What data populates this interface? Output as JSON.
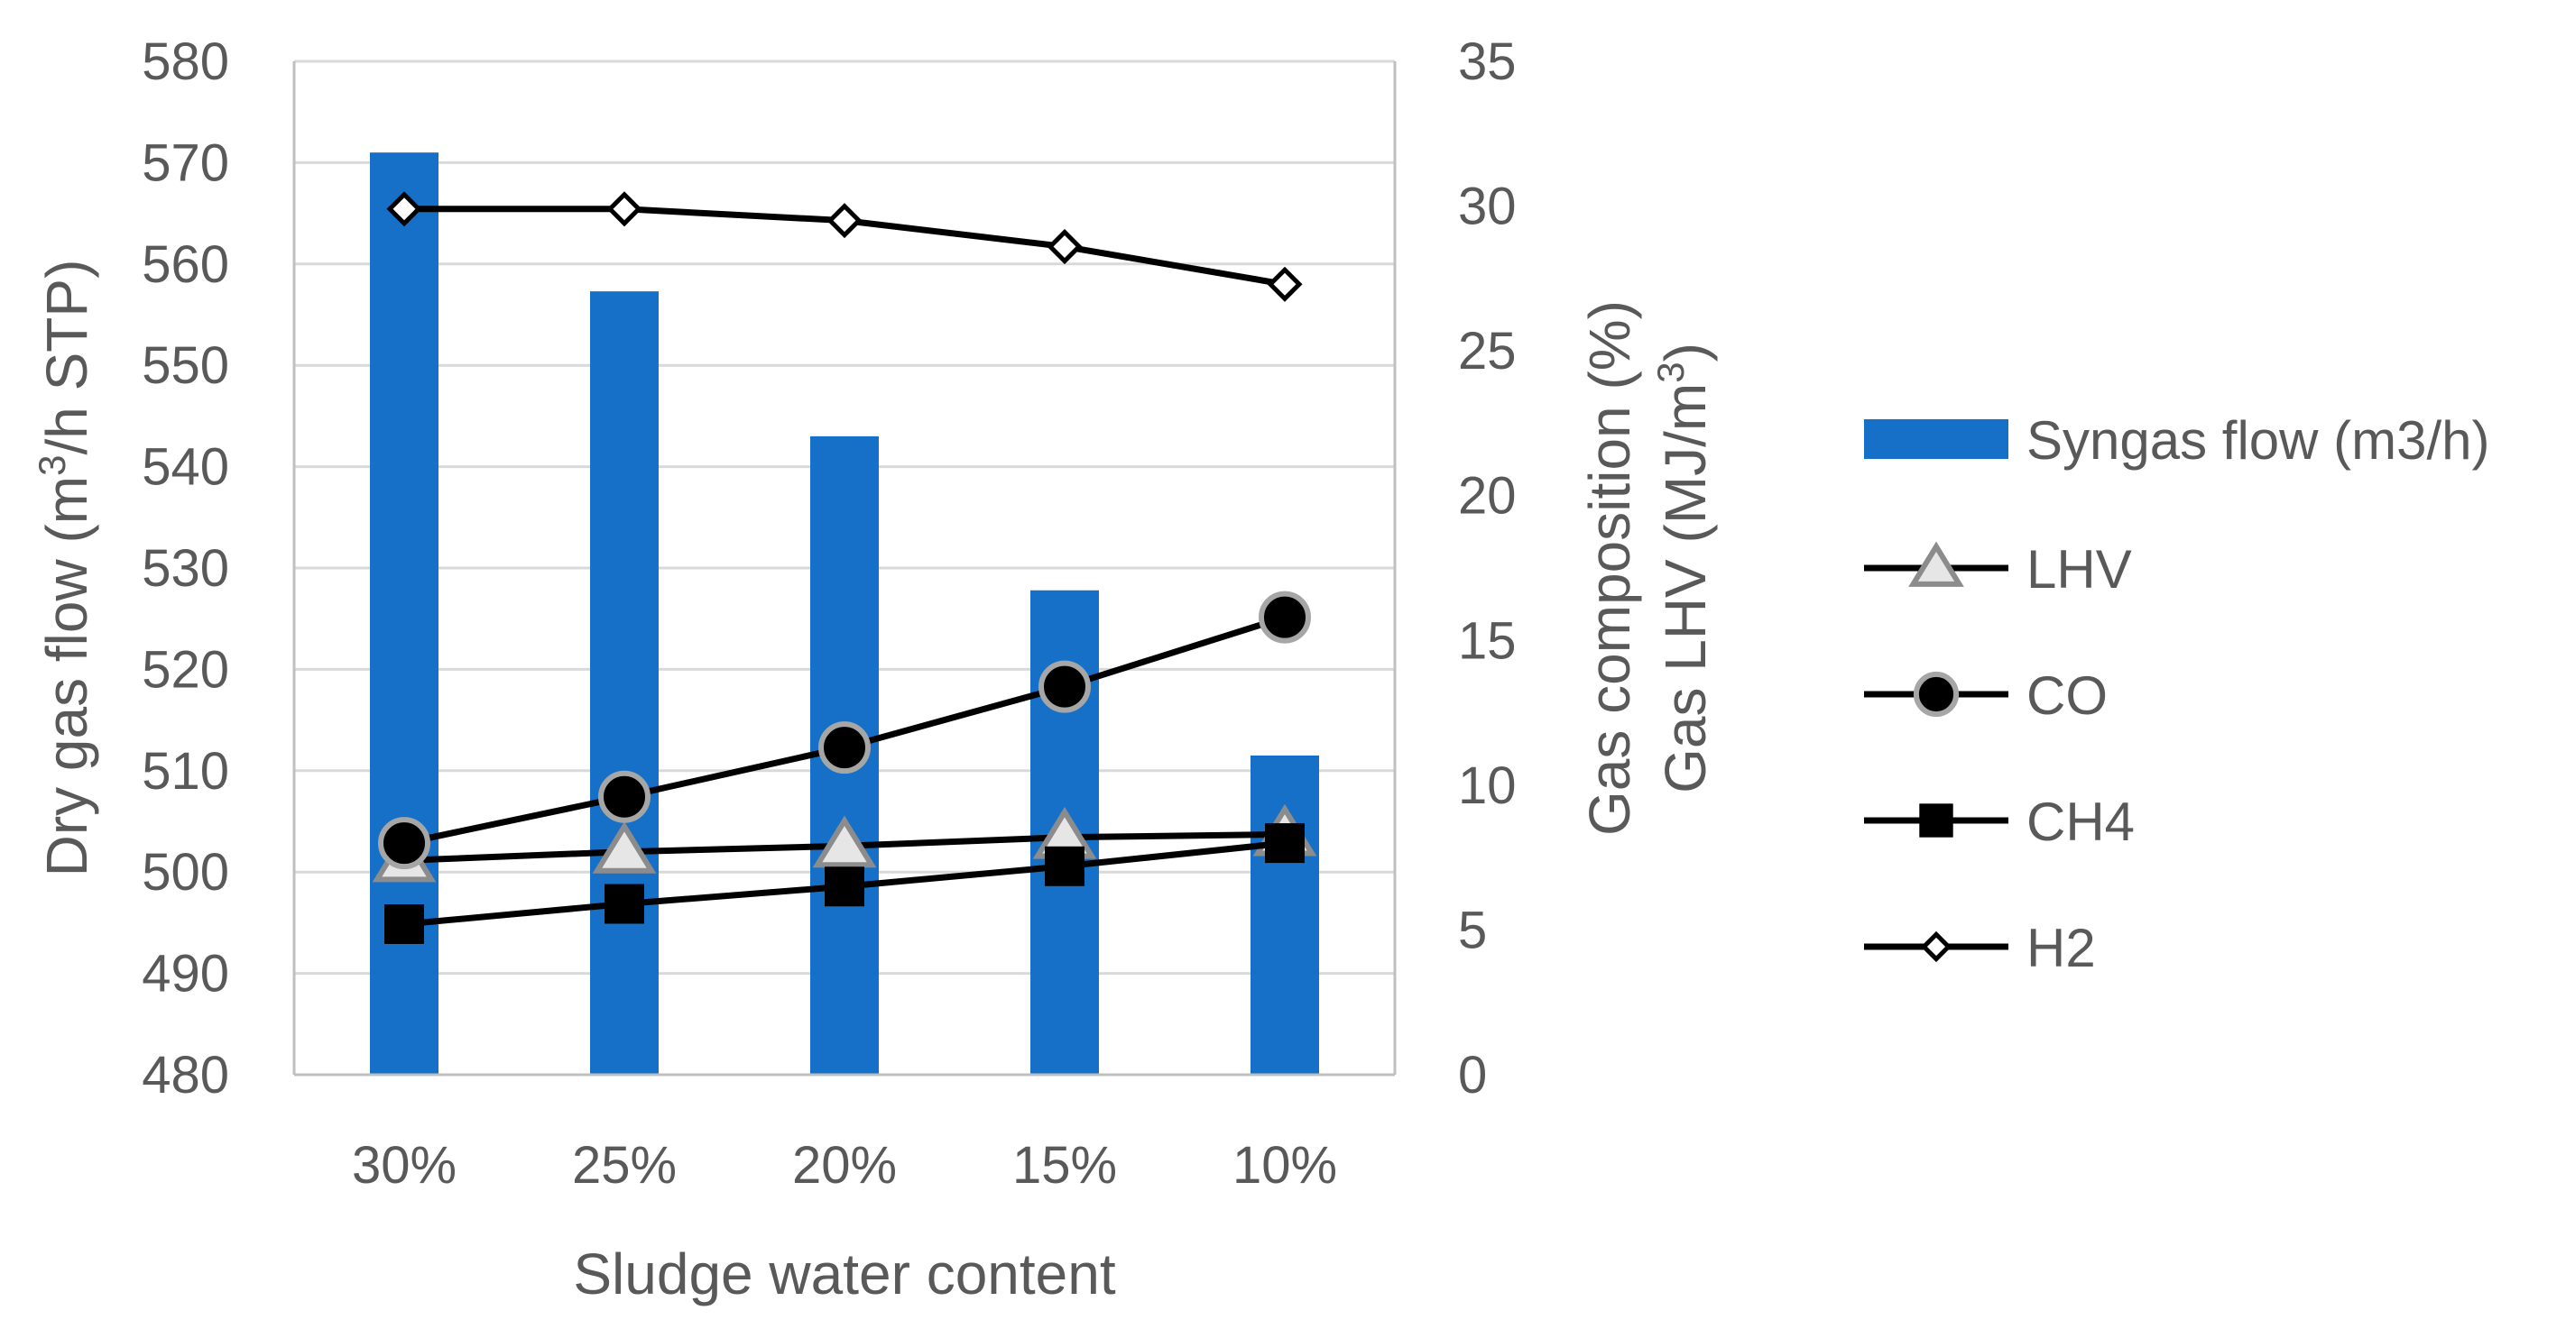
{
  "chart_data": {
    "type": "bar+line",
    "categories": [
      "30%",
      "25%",
      "20%",
      "15%",
      "10%"
    ],
    "xlabel": "Sludge water content",
    "y_left": {
      "label_main": "Dry gas flow (m",
      "label_sup": "3",
      "label_tail": "/h STP)",
      "lim": [
        480,
        580
      ],
      "ticks": [
        "480",
        "490",
        "500",
        "510",
        "520",
        "530",
        "540",
        "550",
        "560",
        "570",
        "580"
      ]
    },
    "y_right": {
      "label_line1": "Gas composition (%)",
      "label_line2_main": "Gas LHV (MJ/m",
      "label_line2_sup": "3",
      "label_line2_tail": ")",
      "lim": [
        0,
        35
      ],
      "ticks": [
        "0",
        "5",
        "10",
        "15",
        "20",
        "25",
        "30",
        "35"
      ]
    },
    "grid": true,
    "legend_position": "right",
    "bars": {
      "name": "Syngas flow (m3/h)",
      "axis": "left",
      "color": "#1670C8",
      "values": [
        571,
        557.3,
        543,
        527.8,
        511.5
      ]
    },
    "series": [
      {
        "name": "LHV",
        "axis": "right",
        "marker": "triangle",
        "values": [
          7.4,
          7.7,
          7.9,
          8.2,
          8.3
        ]
      },
      {
        "name": "CO",
        "axis": "right",
        "marker": "circle",
        "values": [
          8.0,
          9.6,
          11.3,
          13.4,
          15.8
        ]
      },
      {
        "name": "CH4",
        "axis": "right",
        "marker": "square",
        "values": [
          5.2,
          5.9,
          6.5,
          7.2,
          8.0
        ]
      },
      {
        "name": "H2",
        "axis": "right",
        "marker": "diamond",
        "values": [
          29.9,
          29.9,
          29.5,
          28.6,
          27.3
        ]
      }
    ]
  }
}
